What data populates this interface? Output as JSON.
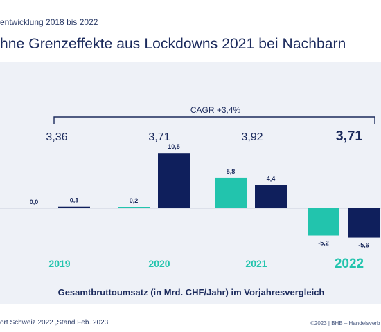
{
  "header": {
    "subtitle": "entwicklung 2018 bis 2022",
    "title": "hne Grenzeffekte aus Lockdowns 2021 bei Nachbarn"
  },
  "footer": {
    "source": "ort Schweiz 2022 ,Stand Feb. 2023",
    "copyright": "©2023 | BHB – Handelsverb"
  },
  "chart_data": {
    "type": "bar",
    "categories": [
      "2019",
      "2020",
      "2021",
      "2022"
    ],
    "series": [
      {
        "values": [
          0.0,
          0.2,
          5.8,
          -5.2
        ],
        "labels": [
          "0,0",
          "0,2",
          "5,8",
          "-5,2"
        ],
        "color": "#22c4ad"
      },
      {
        "values": [
          0.3,
          10.5,
          4.4,
          -5.6
        ],
        "labels": [
          "0,3",
          "10,5",
          "4,4",
          "-5,6"
        ],
        "color": "#0f1f5c"
      }
    ],
    "totals": [
      "3,36",
      "3,71",
      "3,92",
      "3,71"
    ],
    "cagr_label": "CAGR +3,4%",
    "xlabel": "Gesamtbruttoumsatz (in Mrd. CHF/Jahr) im Vorjahresvergleich",
    "ylim": [
      -6,
      12
    ],
    "colors": {
      "teal": "#22c4ad",
      "navy": "#0f1f5c",
      "panel": "#eef1f7",
      "text": "#1b2a5c"
    }
  }
}
